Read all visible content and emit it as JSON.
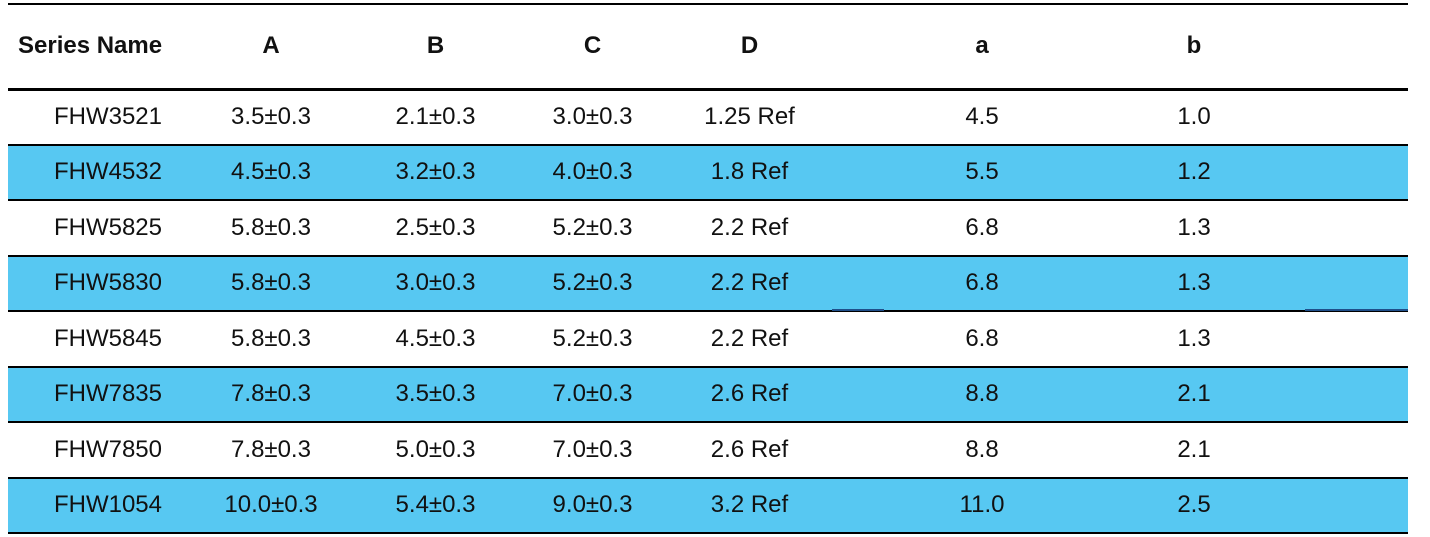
{
  "colors": {
    "shaded_row": "#57c8f2",
    "rule": "#000000",
    "text": "#111111"
  },
  "table": {
    "headers": [
      "Series Name",
      "A",
      "B",
      "C",
      "D",
      "a",
      "b"
    ],
    "rows": [
      {
        "name": "FHW3521",
        "A": "3.5±0.3",
        "B": "2.1±0.3",
        "C": "3.0±0.3",
        "D": "1.25 Ref",
        "a": "4.5",
        "b": "1.0",
        "shaded": false
      },
      {
        "name": "FHW4532",
        "A": "4.5±0.3",
        "B": "3.2±0.3",
        "C": "4.0±0.3",
        "D": "1.8 Ref",
        "a": "5.5",
        "b": "1.2",
        "shaded": true
      },
      {
        "name": "FHW5825",
        "A": "5.8±0.3",
        "B": "2.5±0.3",
        "C": "5.2±0.3",
        "D": "2.2 Ref",
        "a": "6.8",
        "b": "1.3",
        "shaded": false
      },
      {
        "name": "FHW5830",
        "A": "5.8±0.3",
        "B": "3.0±0.3",
        "C": "5.2±0.3",
        "D": "2.2 Ref",
        "a": "6.8",
        "b": "1.3",
        "shaded": true
      },
      {
        "name": "FHW5845",
        "A": "5.8±0.3",
        "B": "4.5±0.3",
        "C": "5.2±0.3",
        "D": "2.2 Ref",
        "a": "6.8",
        "b": "1.3",
        "shaded": false
      },
      {
        "name": "FHW7835",
        "A": "7.8±0.3",
        "B": "3.5±0.3",
        "C": "7.0±0.3",
        "D": "2.6 Ref",
        "a": "8.8",
        "b": "2.1",
        "shaded": true
      },
      {
        "name": "FHW7850",
        "A": "7.8±0.3",
        "B": "5.0±0.3",
        "C": "7.0±0.3",
        "D": "2.6 Ref",
        "a": "8.8",
        "b": "2.1",
        "shaded": false
      },
      {
        "name": "FHW1054",
        "A": "10.0±0.3",
        "B": "5.4±0.3",
        "C": "9.0±0.3",
        "D": "3.2 Ref",
        "a": "11.0",
        "b": "2.5",
        "shaded": true
      }
    ]
  }
}
